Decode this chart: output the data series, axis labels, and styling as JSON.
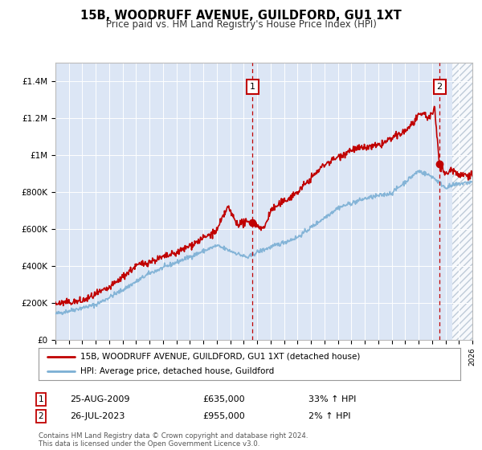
{
  "title": "15B, WOODRUFF AVENUE, GUILDFORD, GU1 1XT",
  "subtitle": "Price paid vs. HM Land Registry's House Price Index (HPI)",
  "red_label": "15B, WOODRUFF AVENUE, GUILDFORD, GU1 1XT (detached house)",
  "blue_label": "HPI: Average price, detached house, Guildford",
  "annotation1_date": "25-AUG-2009",
  "annotation1_price": "£635,000",
  "annotation1_hpi": "33% ↑ HPI",
  "annotation1_year": 2009.65,
  "annotation1_value": 635000,
  "annotation2_date": "26-JUL-2023",
  "annotation2_price": "£955,000",
  "annotation2_hpi": "2% ↑ HPI",
  "annotation2_year": 2023.56,
  "annotation2_value": 955000,
  "footer": "Contains HM Land Registry data © Crown copyright and database right 2024.\nThis data is licensed under the Open Government Licence v3.0.",
  "bg_color": "#dce6f5",
  "ylim": [
    0,
    1500000
  ],
  "xlim_start": 1995,
  "xlim_end": 2026,
  "red_color": "#c00000",
  "blue_color": "#7bafd4",
  "hatch_future_start": 2024.5
}
